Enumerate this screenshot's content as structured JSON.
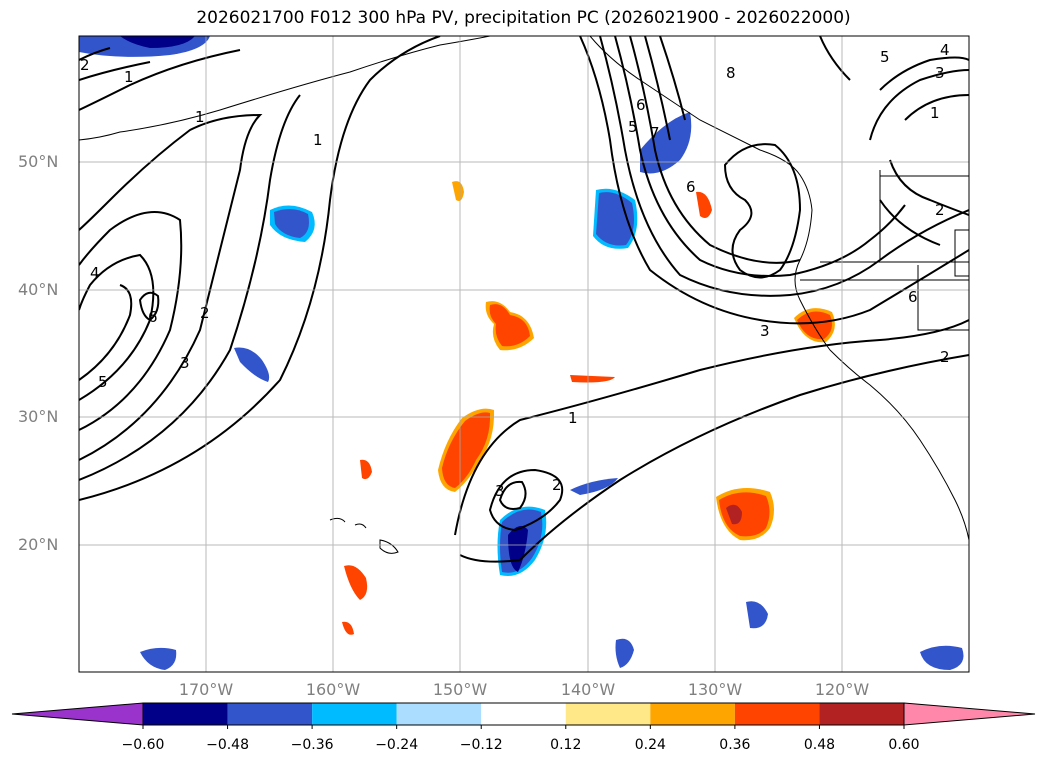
{
  "title": "2026021700 F012 300 hPa PV, precipitation PC (2026021900 - 2026022000)",
  "lat_labels": [
    "50°N",
    "40°N",
    "30°N",
    "20°N"
  ],
  "lon_labels": [
    "170°W",
    "160°W",
    "150°W",
    "140°W",
    "130°W",
    "120°W"
  ],
  "colorbar": {
    "ticks": [
      "−0.60",
      "−0.48",
      "−0.36",
      "−0.24",
      "−0.12",
      "0.12",
      "0.24",
      "0.36",
      "0.48",
      "0.60"
    ],
    "colors": [
      "#9933cc",
      "#000088",
      "#3355cc",
      "#00bbff",
      "#aaddff",
      "#ffffff",
      "#ffe888",
      "#ffa500",
      "#ff4400",
      "#b22222",
      "#ff88aa"
    ]
  },
  "contour_labels": [
    "1",
    "1",
    "1",
    "2",
    "2",
    "3",
    "3",
    "4",
    "4",
    "5",
    "5",
    "5",
    "6",
    "6",
    "6",
    "8",
    "1",
    "2",
    "3",
    "1",
    "2",
    "3",
    "6",
    "2",
    "7"
  ]
}
